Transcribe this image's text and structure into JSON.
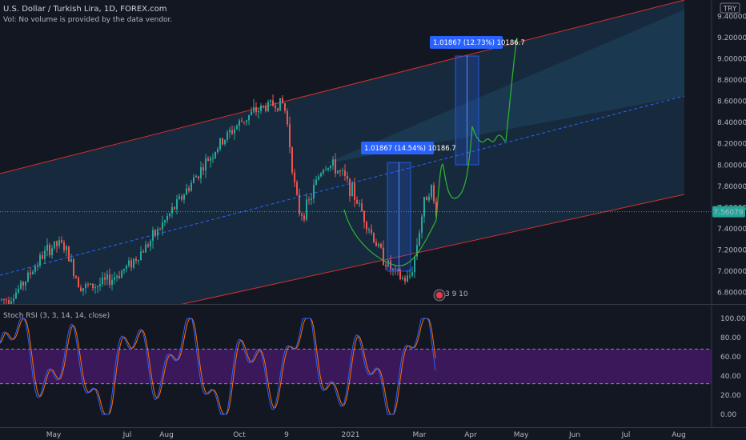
{
  "header": {
    "title": "U.S. Dollar / Turkish Lira, 1D, FOREX.com",
    "volume_note": "Vol: No volume is provided by the data vendor."
  },
  "currency_label": "TRY",
  "colors": {
    "background": "#131722",
    "up": "#26a69a",
    "down": "#ef5350",
    "channel": "#d32f2f",
    "midline": "#2962ff",
    "projection": "#2eb82e",
    "stoch_k": "#2962ff",
    "stoch_d": "#ff6d00",
    "band": "#4a1a6e"
  },
  "chart_data": [
    {
      "type": "candlestick",
      "symbol": "USDTRY",
      "timeframe": "1D",
      "y_ticks": [
        "6.80000",
        "7.00000",
        "7.20000",
        "7.40000",
        "7.60000",
        "7.80000",
        "8.00000",
        "8.20000",
        "8.40000",
        "8.60000",
        "8.80000",
        "9.00000",
        "9.20000",
        "9.40000"
      ],
      "ylim": [
        6.7,
        9.5
      ],
      "x_ticks": [
        "May",
        "Jul",
        "Aug",
        "Oct",
        "9",
        "2021",
        "Mar",
        "Apr",
        "May",
        "Jun",
        "Jul",
        "Aug"
      ],
      "last_price": "7.56079",
      "annotations": [
        {
          "text": "1.01867 (14.54%) 10186.7"
        },
        {
          "text": "1.01867 (12.73%) 10186.7"
        }
      ],
      "key_prices": [
        {
          "label": "start",
          "value": 6.73
        },
        {
          "label": "May high",
          "value": 7.25
        },
        {
          "label": "Jun low",
          "value": 6.85
        },
        {
          "label": "Nov high",
          "value": 8.58
        },
        {
          "label": "Nov low",
          "value": 7.55
        },
        {
          "label": "Jan high",
          "value": 8.0
        },
        {
          "label": "Feb low",
          "value": 6.92
        },
        {
          "label": "Mar high",
          "value": 7.78
        },
        {
          "label": "current",
          "value": 7.56
        }
      ],
      "projection_target": 9.2
    },
    {
      "type": "line",
      "title": "Stoch RSI (3, 3, 14, 14, close)",
      "y_ticks": [
        "0.00",
        "20.00",
        "40.00",
        "60.00",
        "80.00",
        "100.00"
      ],
      "ylim": [
        -6,
        110
      ],
      "bands": [
        32,
        68
      ]
    }
  ]
}
